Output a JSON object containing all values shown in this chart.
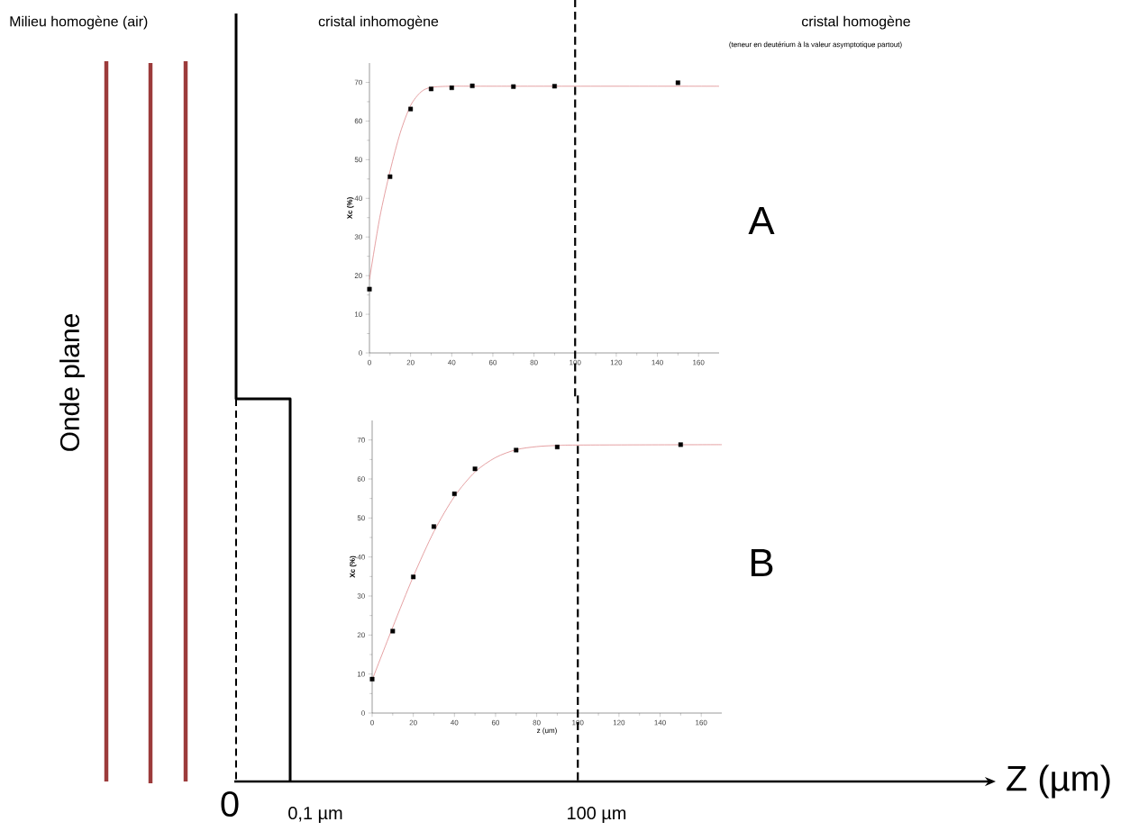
{
  "chart_data": [
    {
      "type": "scatter",
      "ylabel": "Xc (%)",
      "xlim": [
        0,
        170
      ],
      "ylim": [
        0,
        75
      ],
      "xticks": [
        0,
        20,
        40,
        60,
        80,
        100,
        120,
        140,
        160
      ],
      "yticks": [
        0,
        10,
        20,
        30,
        40,
        50,
        60,
        70
      ],
      "series": [
        {
          "type": "scatter",
          "marker": "square",
          "color": "#000000",
          "x": [
            0,
            10,
            20,
            30,
            40,
            50,
            70,
            90,
            150
          ],
          "values": [
            16.5,
            45.6,
            63.1,
            68.3,
            68.6,
            69.1,
            68.9,
            69.0,
            69.9
          ]
        },
        {
          "type": "line",
          "marker": "none",
          "line_style": "solid",
          "color": "#d9777a",
          "x": [
            0,
            5,
            10,
            15,
            20,
            25,
            30,
            40,
            60,
            170
          ],
          "values": [
            19,
            35,
            47,
            57,
            64,
            67.5,
            68.7,
            69,
            69,
            69
          ]
        }
      ],
      "ref_lines": [
        {
          "axis": "x",
          "value": 100,
          "color": "#000000",
          "line_style": "dashed"
        }
      ]
    },
    {
      "type": "scatter",
      "xlabel": "z (um)",
      "ylabel": "Xc (%)",
      "xlim": [
        0,
        170
      ],
      "ylim": [
        0,
        75
      ],
      "xticks": [
        0,
        20,
        40,
        60,
        80,
        100,
        120,
        140,
        160
      ],
      "yticks": [
        0,
        10,
        20,
        30,
        40,
        50,
        60,
        70
      ],
      "series": [
        {
          "type": "scatter",
          "marker": "square",
          "color": "#000000",
          "x": [
            0,
            10,
            20,
            30,
            40,
            50,
            70,
            90,
            150
          ],
          "values": [
            8.7,
            21,
            34.9,
            47.8,
            56.2,
            62.6,
            67.4,
            68.2,
            68.8
          ]
        },
        {
          "type": "line",
          "marker": "none",
          "line_style": "solid",
          "color": "#d9777a",
          "x": [
            0,
            10,
            20,
            30,
            40,
            50,
            60,
            70,
            80,
            90,
            100,
            170
          ],
          "values": [
            8.5,
            22,
            35,
            46.5,
            55.5,
            61.8,
            65.5,
            67.5,
            68.3,
            68.6,
            68.7,
            68.8
          ]
        }
      ],
      "ref_lines": [
        {
          "axis": "x",
          "value": 100,
          "color": "#000000",
          "line_style": "dashed"
        }
      ]
    },
    {
      "type": "other",
      "annotations": [
        "Milieu homogène (air)",
        "cristal inhomogène",
        "cristal homogène",
        "(teneur en deutérium à la valeur asymptotique partout)",
        "Onde plane",
        "A",
        "B",
        "0",
        "0,1 µm",
        "100 µm",
        "Z (µm)"
      ]
    }
  ]
}
